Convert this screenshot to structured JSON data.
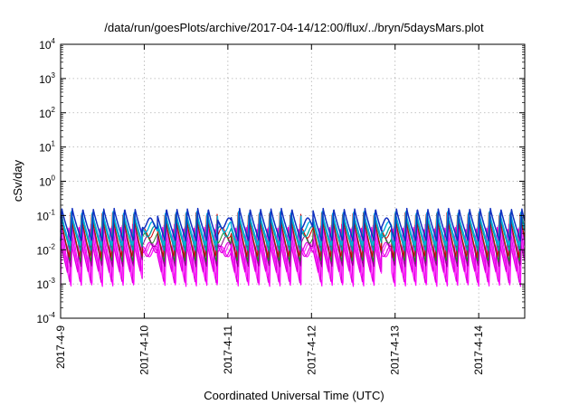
{
  "chart_data": {
    "type": "line",
    "title": "/data/run/goesPlots/archive/2017-04-14/12:00/flux/../bryn/5daysMars.plot",
    "xlabel": "Coordinated Universal Time (UTC)",
    "ylabel": "cSv/day",
    "y_scale": "log",
    "ylim": [
      0.0001,
      10000
    ],
    "y_ticks": [
      {
        "base": "10",
        "exp": "4",
        "value": 10000
      },
      {
        "base": "10",
        "exp": "3",
        "value": 1000
      },
      {
        "base": "10",
        "exp": "2",
        "value": 100
      },
      {
        "base": "10",
        "exp": "1",
        "value": 10
      },
      {
        "base": "10",
        "exp": "0",
        "value": 1
      },
      {
        "base": "10",
        "exp": "-1",
        "value": 0.1
      },
      {
        "base": "10",
        "exp": "-2",
        "value": 0.01
      },
      {
        "base": "10",
        "exp": "-3",
        "value": 0.001
      },
      {
        "base": "10",
        "exp": "-4",
        "value": 0.0001
      }
    ],
    "xlim_days": [
      0,
      5.55
    ],
    "x_ticks": [
      {
        "label": "2017-4-9",
        "day": 0
      },
      {
        "label": "2017-4-10",
        "day": 1
      },
      {
        "label": "2017-4-11",
        "day": 2
      },
      {
        "label": "2017-4-12",
        "day": 3
      },
      {
        "label": "2017-4-13",
        "day": 4
      },
      {
        "label": "2017-4-14",
        "day": 5
      }
    ],
    "grid": true,
    "legend": "none",
    "pattern": {
      "cycles_per_day": 8,
      "gap_days": [
        [
          0.98,
          1.16
        ],
        [
          1.88,
          2.04
        ],
        [
          2.88,
          3.02
        ],
        [
          3.84,
          3.96
        ]
      ]
    },
    "series": [
      {
        "color": "#ff00ff",
        "peak": 0.06,
        "trough": 0.00085,
        "phase": 0.0,
        "lw": 1.2
      },
      {
        "color": "#dd00dd",
        "peak": 0.05,
        "trough": 0.0011,
        "phase": 0.015,
        "lw": 1.2
      },
      {
        "color": "#ff33ff",
        "peak": 0.055,
        "trough": 0.0016,
        "phase": 0.03,
        "lw": 1.2
      },
      {
        "color": "#e000e0",
        "peak": 0.045,
        "trough": 0.0022,
        "phase": 0.045,
        "lw": 1.2
      },
      {
        "color": "#8b008b",
        "peak": 0.07,
        "trough": 0.0032,
        "phase": 0.005,
        "lw": 1.0
      },
      {
        "color": "#228b22",
        "peak": 0.08,
        "trough": 0.0045,
        "phase": 0.01,
        "lw": 1.0
      },
      {
        "color": "#cc0000",
        "peak": 0.12,
        "trough": 0.006,
        "phase": 0.02,
        "lw": 1.0
      },
      {
        "color": "#00a0a0",
        "peak": 0.1,
        "trough": 0.009,
        "phase": 0.008,
        "lw": 1.3
      },
      {
        "color": "#00b0e0",
        "peak": 0.13,
        "trough": 0.013,
        "phase": 0.012,
        "lw": 1.4
      },
      {
        "color": "#1030c0",
        "peak": 0.16,
        "trough": 0.018,
        "phase": 0.0,
        "lw": 1.5
      }
    ],
    "series_colors": {
      "frame": "#000000",
      "grid": "#b0b0b0"
    }
  }
}
